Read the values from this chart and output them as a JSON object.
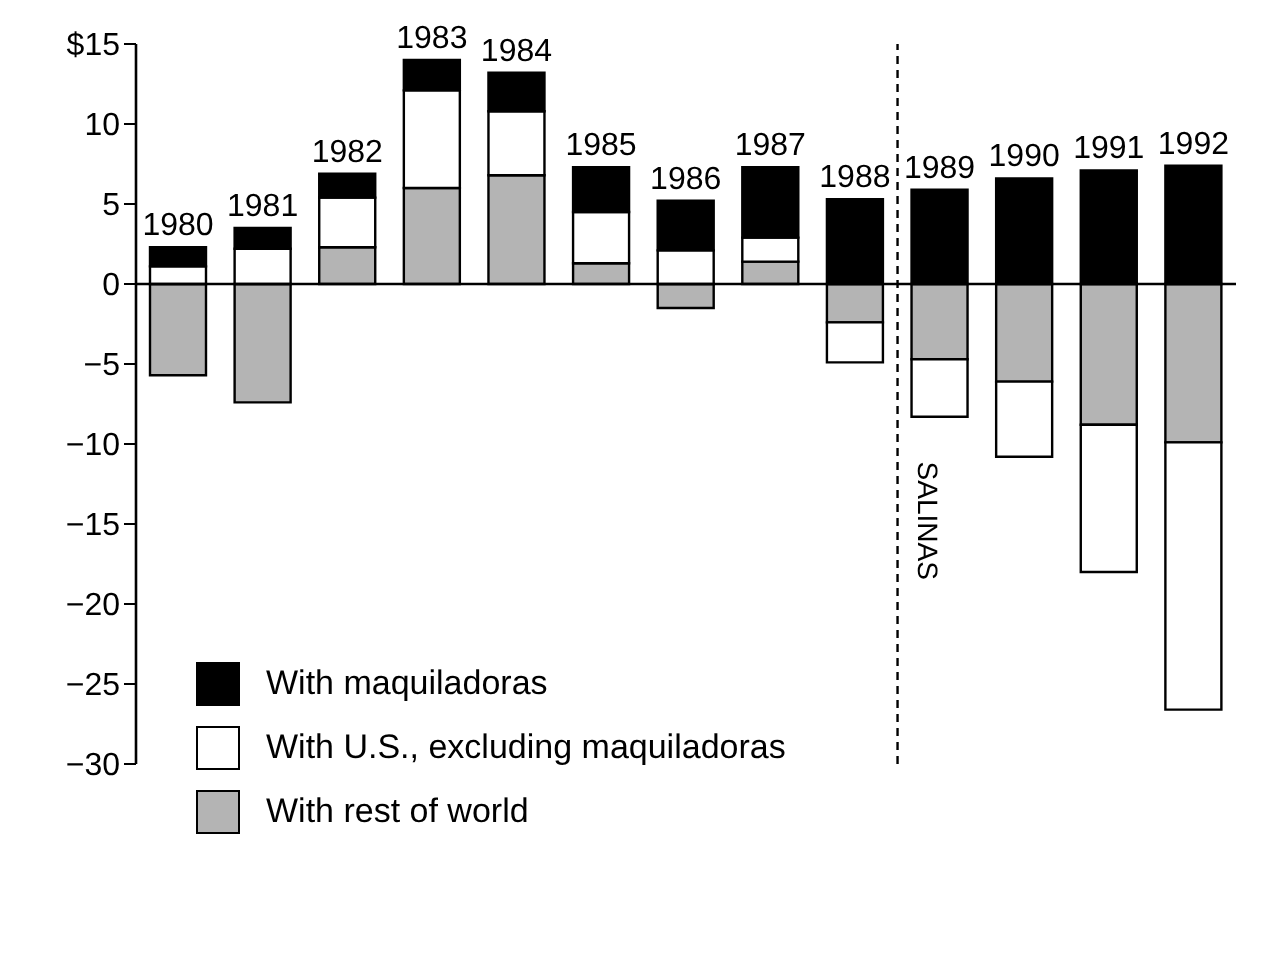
{
  "chart_data": {
    "type": "bar",
    "stacked": true,
    "categories": [
      "1980",
      "1981",
      "1982",
      "1983",
      "1984",
      "1985",
      "1986",
      "1987",
      "1988",
      "1989",
      "1990",
      "1991",
      "1992"
    ],
    "series": [
      {
        "name": "With rest of world",
        "color": "#b4b4b4",
        "values": [
          -5.7,
          -7.4,
          2.3,
          6.0,
          6.8,
          1.3,
          -1.5,
          1.4,
          -2.4,
          -4.7,
          -6.1,
          -8.8,
          -9.9
        ]
      },
      {
        "name": "With U.S., excluding maquiladoras",
        "color": "#ffffff",
        "values": [
          1.1,
          2.2,
          3.1,
          6.1,
          4.0,
          3.2,
          2.1,
          1.5,
          -2.5,
          -3.6,
          -4.7,
          -9.2,
          -16.7
        ]
      },
      {
        "name": "With maquiladoras",
        "color": "#000000",
        "values": [
          1.2,
          1.3,
          1.5,
          1.9,
          2.4,
          2.8,
          3.1,
          4.4,
          5.3,
          5.9,
          6.6,
          7.1,
          7.4
        ]
      }
    ],
    "ylim": [
      -30,
      15
    ],
    "yticks": [
      {
        "value": 15,
        "label": "$15"
      },
      10,
      5,
      0,
      {
        "value": -5,
        "label": "−5"
      },
      {
        "value": -10,
        "label": "−10"
      },
      {
        "value": -15,
        "label": "−15"
      },
      {
        "value": -20,
        "label": "−20"
      },
      {
        "value": -25,
        "label": "−25"
      },
      {
        "value": -30,
        "label": "−30"
      }
    ],
    "legend": "bottom left",
    "ref_lines": [
      {
        "axis": "x",
        "value": "1988",
        "label": "SALINAS",
        "line_style": "dashed",
        "color": "#000000"
      }
    ]
  }
}
